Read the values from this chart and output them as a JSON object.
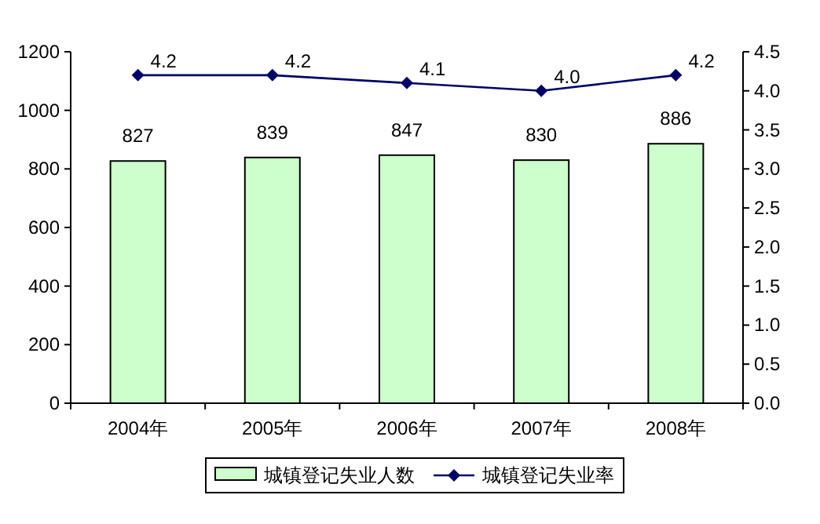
{
  "chart_data": {
    "type": "bar",
    "categories": [
      "2004年",
      "2005年",
      "2006年",
      "2007年",
      "2008年"
    ],
    "series": [
      {
        "name": "城镇登记失业人数",
        "color": "#ccffcc",
        "values": [
          827,
          839,
          847,
          830,
          886
        ],
        "value_labels": [
          "827",
          "839",
          "847",
          "830",
          "886"
        ]
      },
      {
        "name": "城镇登记失业率",
        "type": "line",
        "axis": "y2",
        "color": "#000066",
        "marker": "diamond",
        "values": [
          4.2,
          4.2,
          4.1,
          4.0,
          4.2
        ],
        "value_labels": [
          "4.2",
          "4.2",
          "4.1",
          "4.0",
          "4.2"
        ]
      }
    ],
    "ylim": [
      0,
      1200
    ],
    "yticks": [
      0,
      200,
      400,
      600,
      800,
      1000,
      1200
    ],
    "y2lim": [
      0,
      4.5
    ],
    "y2ticks": [
      {
        "value": 0,
        "label": "0.0"
      },
      {
        "value": 0.5,
        "label": "0.5"
      },
      {
        "value": 1,
        "label": "1.0"
      },
      {
        "value": 1.5,
        "label": "1.5"
      },
      {
        "value": 2,
        "label": "2.0"
      },
      {
        "value": 2.5,
        "label": "2.5"
      },
      {
        "value": 3,
        "label": "3.0"
      },
      {
        "value": 3.5,
        "label": "3.5"
      },
      {
        "value": 4,
        "label": "4.0"
      },
      {
        "value": 4.5,
        "label": "4.5"
      }
    ],
    "legend": "bottom",
    "grid": false
  }
}
